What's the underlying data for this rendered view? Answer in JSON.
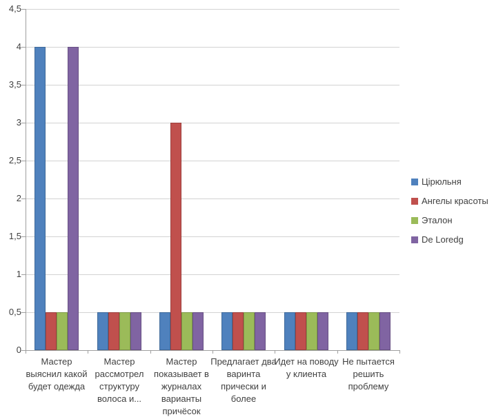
{
  "chart_data": {
    "type": "bar",
    "title": "",
    "categories": [
      "Мастер выяснил какой будет одежда",
      "Мастер рассмотрел структуру волоса и...",
      "Мастер показывает в журналах варианты причёсок",
      "Предлагает два варинта прически и более",
      "Идет на поводу у клиента",
      "Не пытается решить проблему"
    ],
    "category_label_lines": [
      [
        "Мастер",
        "выяснил какой",
        "будет одежда"
      ],
      [
        "Мастер",
        "рассмотрел",
        "структуру",
        "волоса и..."
      ],
      [
        "Мастер",
        "показывает в",
        "журналах",
        "варианты",
        "причёсок"
      ],
      [
        "Предлагает два",
        "варинта",
        "прически и",
        "более"
      ],
      [
        "Идет на поводу",
        "у клиента"
      ],
      [
        "Не пытается",
        "решить",
        "проблему"
      ]
    ],
    "series": [
      {
        "name": "Цірюльня",
        "color": "#4F81BD",
        "border_color": "#3D6899",
        "values": [
          4,
          0.5,
          0.5,
          0.5,
          0.5,
          0.5
        ]
      },
      {
        "name": "Ангелы красоты",
        "color": "#C0504D",
        "border_color": "#9C3F3D",
        "values": [
          0.5,
          0.5,
          3,
          0.5,
          0.5,
          0.5
        ]
      },
      {
        "name": "Эталон",
        "color": "#9BBB59",
        "border_color": "#7D9847",
        "values": [
          0.5,
          0.5,
          0.5,
          0.5,
          0.5,
          0.5
        ]
      },
      {
        "name": "De Loredg",
        "color": "#8064A2",
        "border_color": "#675083",
        "values": [
          4,
          0.5,
          0.5,
          0.5,
          0.5,
          0.5
        ]
      }
    ],
    "y_axis": {
      "min": 0,
      "max": 4.5,
      "step": 0.5,
      "tick_labels": [
        "0",
        "0,5",
        "1",
        "1,5",
        "2",
        "2,5",
        "3",
        "3,5",
        "4",
        "4,5"
      ]
    },
    "legend": {
      "position": "right",
      "entries": [
        "Цірюльня",
        "Ангелы красоты",
        "Эталон",
        "De Loredg"
      ]
    },
    "grid": true,
    "colors": {
      "background": "#FFFFFF",
      "gridline": "#D2D2D2",
      "axis_line": "#9E9E9E",
      "text": "#3F3F3F"
    }
  }
}
